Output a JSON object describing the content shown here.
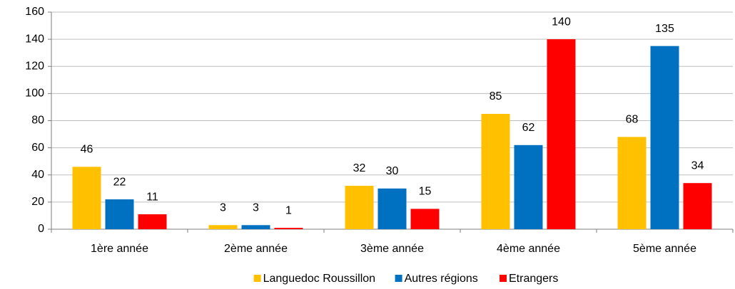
{
  "chart_data": {
    "type": "bar",
    "categories": [
      "1ère année",
      "2ème année",
      "3ème année",
      "4ème année",
      "5ème année"
    ],
    "series": [
      {
        "name": "Languedoc Roussillon",
        "color": "#ffc000",
        "values": [
          46,
          3,
          32,
          85,
          68
        ]
      },
      {
        "name": "Autres régions",
        "color": "#0070c0",
        "values": [
          22,
          3,
          30,
          62,
          135
        ]
      },
      {
        "name": "Etrangers",
        "color": "#ff0000",
        "values": [
          11,
          1,
          15,
          140,
          34
        ]
      }
    ],
    "ylim": [
      0,
      160
    ],
    "yticks": [
      0,
      20,
      40,
      60,
      80,
      100,
      120,
      140,
      160
    ],
    "grid": true,
    "legend": "bottom"
  }
}
